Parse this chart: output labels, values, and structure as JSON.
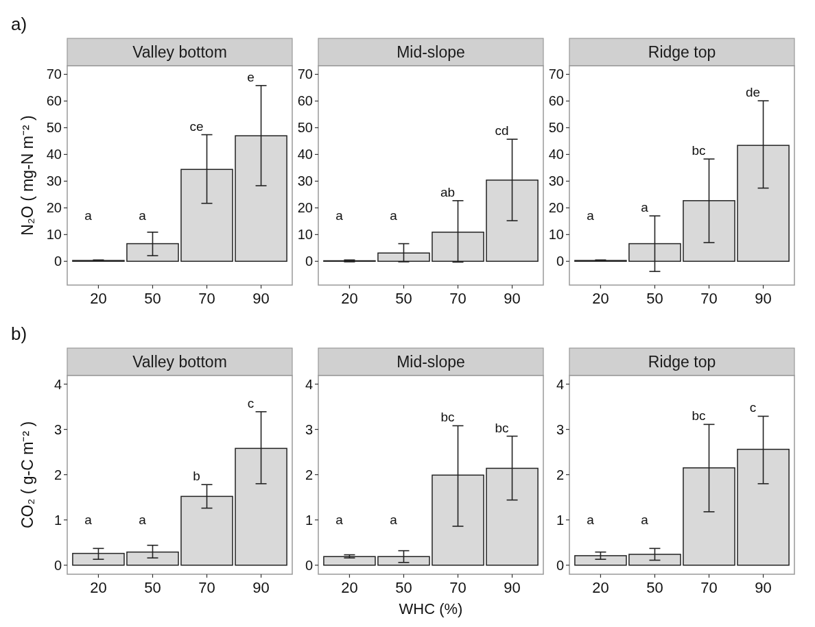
{
  "chart_data": [
    {
      "type": "bar",
      "title": "Valley bottom",
      "ylabel": "N₂O ( mg-N m⁻² )",
      "categories": [
        "20",
        "50",
        "70",
        "90"
      ],
      "color": "#d9d9d9",
      "values": [
        0.3,
        6.6,
        34.4,
        47.0
      ],
      "errors": [
        [
          0.1,
          0.5
        ],
        [
          2.1,
          10.9
        ],
        [
          21.7,
          47.4
        ],
        [
          28.3,
          65.8
        ]
      ],
      "ylim": [
        -8.9,
        73.2
      ],
      "yticks": [
        0,
        10,
        20,
        30,
        40,
        50,
        60,
        70
      ],
      "grid": false,
      "annotations": [
        "a)",
        "a",
        "a",
        "ce",
        "e"
      ]
    },
    {
      "type": "bar",
      "title": "Mid-slope",
      "categories": [
        "20",
        "50",
        "70",
        "90"
      ],
      "color": "#d9d9d9",
      "values": [
        0.2,
        3.1,
        10.9,
        30.4
      ],
      "errors": [
        [
          -0.2,
          0.5
        ],
        [
          -0.2,
          6.6
        ],
        [
          -0.3,
          22.7
        ],
        [
          15.2,
          45.7
        ]
      ],
      "ylim": [
        -8.9,
        73.2
      ],
      "yticks": [
        0,
        10,
        20,
        30,
        40,
        50,
        60,
        70
      ],
      "grid": false,
      "annotations": [
        "a",
        "a",
        "ab",
        "cd"
      ]
    },
    {
      "type": "bar",
      "title": "Ridge top",
      "categories": [
        "20",
        "50",
        "70",
        "90"
      ],
      "color": "#d9d9d9",
      "values": [
        0.3,
        6.6,
        22.7,
        43.4
      ],
      "errors": [
        [
          0.1,
          0.5
        ],
        [
          -3.8,
          17.0
        ],
        [
          7.0,
          38.3
        ],
        [
          27.4,
          60.1
        ]
      ],
      "ylim": [
        -8.9,
        73.2
      ],
      "yticks": [
        0,
        10,
        20,
        30,
        40,
        50,
        60,
        70
      ],
      "grid": false,
      "annotations": [
        "a",
        "a",
        "bc",
        "de"
      ]
    },
    {
      "type": "bar",
      "title": "Valley bottom",
      "ylabel": "CO₂ ( g-C m⁻² )",
      "categories": [
        "20",
        "50",
        "70",
        "90"
      ],
      "color": "#d9d9d9",
      "values": [
        0.26,
        0.29,
        1.52,
        2.58
      ],
      "errors": [
        [
          0.13,
          0.37
        ],
        [
          0.16,
          0.44
        ],
        [
          1.26,
          1.78
        ],
        [
          1.8,
          3.39
        ]
      ],
      "ylim": [
        -0.2,
        4.19
      ],
      "yticks": [
        0,
        1,
        2,
        3,
        4
      ],
      "grid": false,
      "annotations": [
        "b)",
        "a",
        "a",
        "b",
        "c"
      ]
    },
    {
      "type": "bar",
      "title": "Mid-slope",
      "xlabel": "WHC (%)",
      "categories": [
        "20",
        "50",
        "70",
        "90"
      ],
      "color": "#d9d9d9",
      "values": [
        0.19,
        0.19,
        1.99,
        2.14
      ],
      "errors": [
        [
          0.16,
          0.23
        ],
        [
          0.06,
          0.32
        ],
        [
          0.86,
          3.08
        ],
        [
          1.44,
          2.85
        ]
      ],
      "ylim": [
        -0.2,
        4.19
      ],
      "yticks": [
        0,
        1,
        2,
        3,
        4
      ],
      "grid": false,
      "annotations": [
        "a",
        "a",
        "bc",
        "bc"
      ]
    },
    {
      "type": "bar",
      "title": "Ridge top",
      "categories": [
        "20",
        "50",
        "70",
        "90"
      ],
      "color": "#d9d9d9",
      "values": [
        0.21,
        0.24,
        2.15,
        2.56
      ],
      "errors": [
        [
          0.13,
          0.29
        ],
        [
          0.11,
          0.37
        ],
        [
          1.18,
          3.11
        ],
        [
          1.8,
          3.29
        ]
      ],
      "ylim": [
        -0.2,
        4.19
      ],
      "yticks": [
        0,
        1,
        2,
        3,
        4
      ],
      "grid": false,
      "annotations": [
        "a",
        "a",
        "bc",
        "c"
      ]
    }
  ]
}
